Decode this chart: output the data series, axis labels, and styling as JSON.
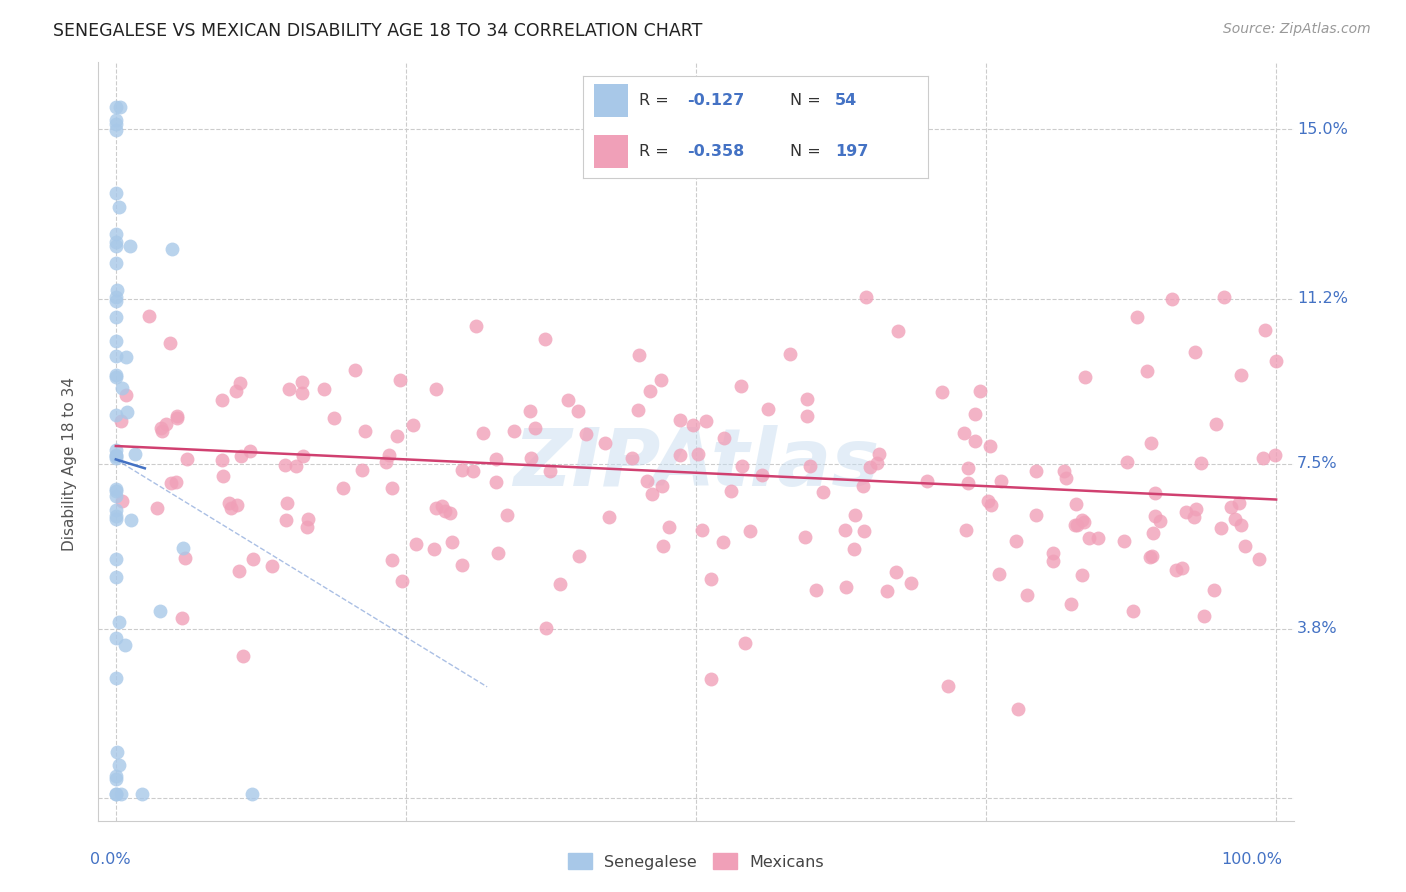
{
  "title": "SENEGALESE VS MEXICAN DISABILITY AGE 18 TO 34 CORRELATION CHART",
  "source": "Source: ZipAtlas.com",
  "ylabel": "Disability Age 18 to 34",
  "blue_color": "#a8c8e8",
  "pink_color": "#f0a0b8",
  "blue_line_color": "#4472c4",
  "pink_line_color": "#d04070",
  "label_color": "#4472c4",
  "watermark_color": "#c8ddf0",
  "grid_color": "#cccccc",
  "ytick_vals": [
    0.0,
    0.038,
    0.075,
    0.112,
    0.15
  ],
  "ytick_labels": [
    "",
    "3.8%",
    "7.5%",
    "11.2%",
    "15.0%"
  ],
  "xtick_vals": [
    0.0,
    0.25,
    0.5,
    0.75,
    1.0
  ],
  "xlim": [
    -0.015,
    1.015
  ],
  "ylim": [
    -0.005,
    0.165
  ],
  "sen_R": -0.127,
  "sen_N": 54,
  "mex_R": -0.358,
  "mex_N": 197
}
